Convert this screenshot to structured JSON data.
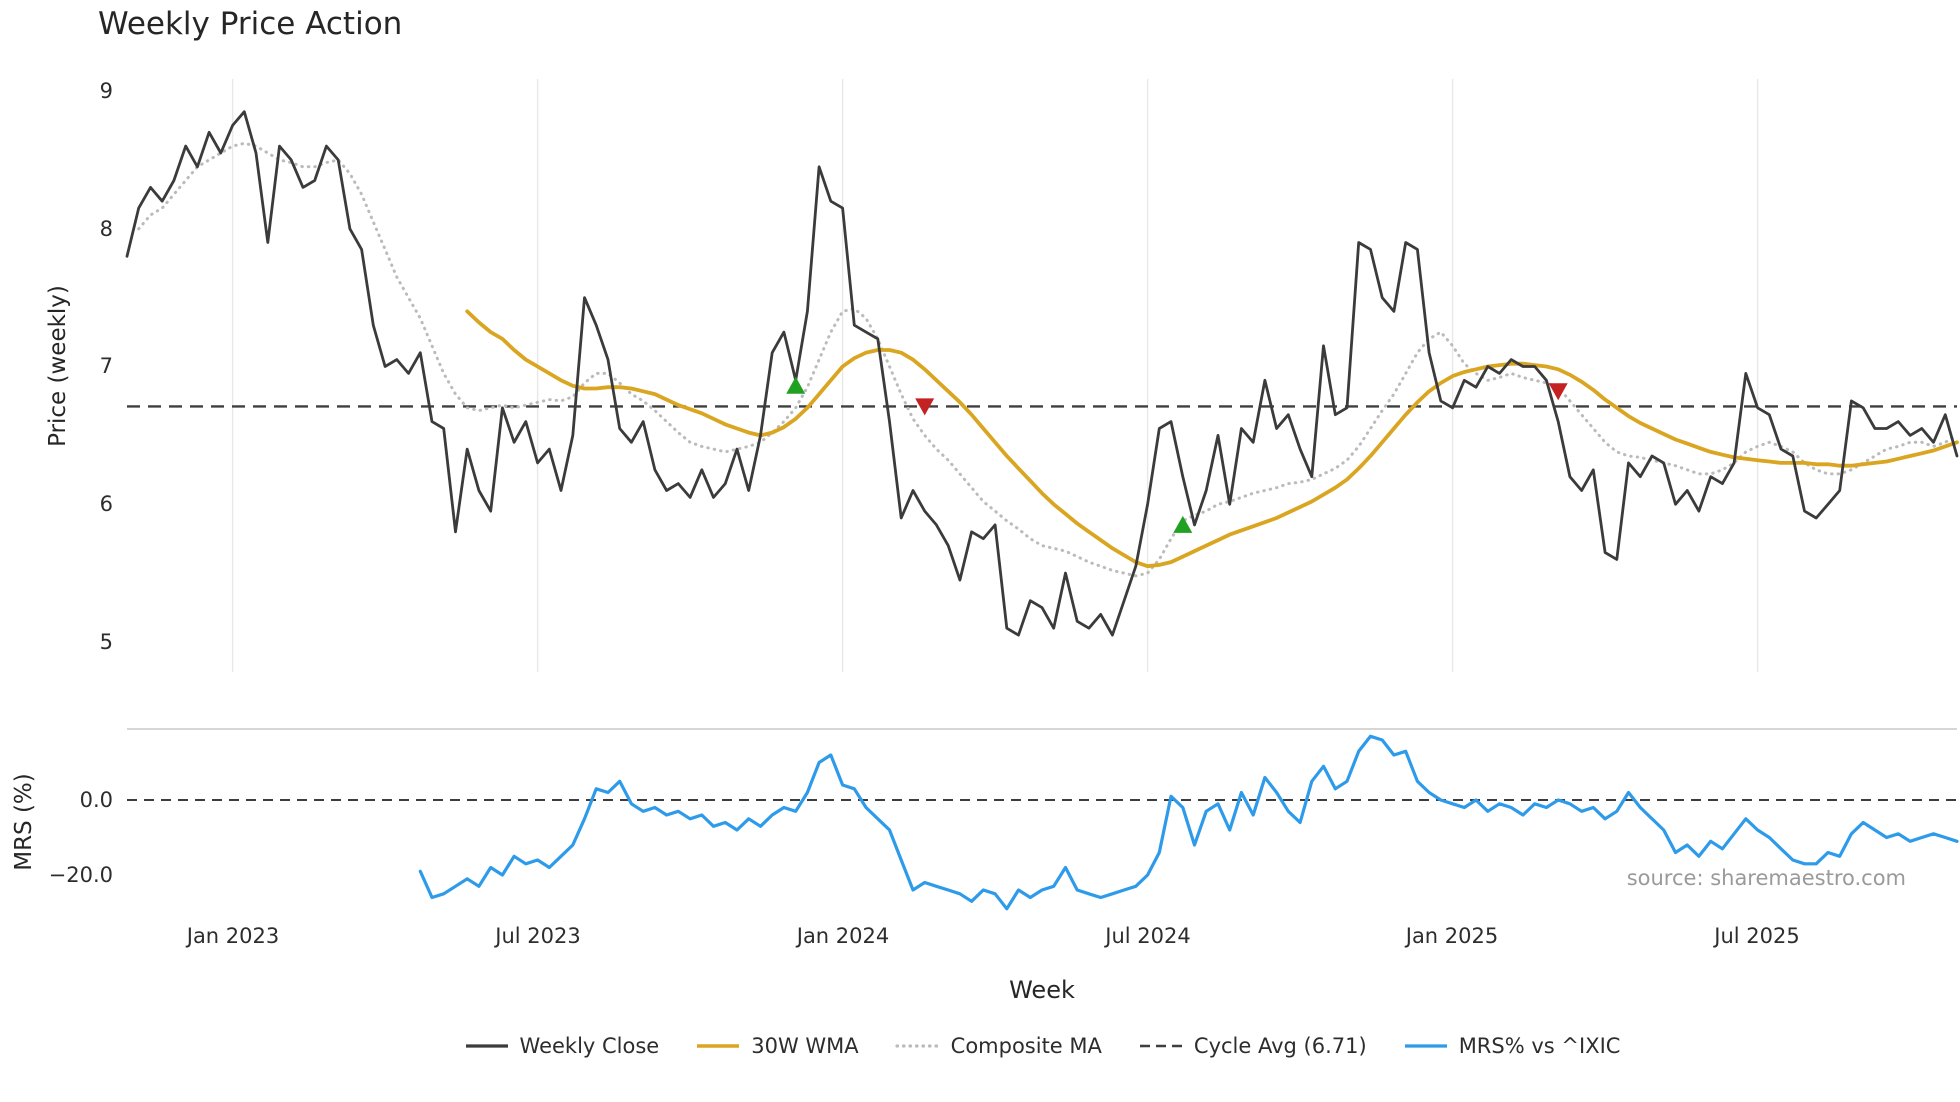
{
  "legend": {
    "items": [
      {
        "label": "Weekly Close",
        "color": "#3b3b3b"
      },
      {
        "label": "30W WMA",
        "color": "#DAA520"
      },
      {
        "label": "Composite MA",
        "color": "#bbbbbb"
      },
      {
        "label": "Cycle Avg (6.71)",
        "color": "#3f3f3f"
      },
      {
        "label": "MRS% vs ^IXIC",
        "color": "#2e9bea"
      }
    ]
  },
  "chart_data": {
    "type": "line",
    "title": "Weekly Price Action",
    "xlabel": "Week",
    "source": "source: sharemaestro.com",
    "signal_colors": {
      "buy": "#21a121",
      "sell": "#c42222"
    },
    "x_axis": {
      "unit": "week_index",
      "domain": [
        0,
        156
      ],
      "tick_weeks": [
        9,
        35,
        61,
        87,
        113,
        139
      ],
      "tick_labels": [
        "Jan 2023",
        "Jul 2023",
        "Jan 2024",
        "Jul 2024",
        "Jan 2025",
        "Jul 2025"
      ]
    },
    "panels": [
      {
        "name": "price",
        "ylabel": "Price (weekly)",
        "ylim": [
          4.8,
          9.2
        ],
        "yticks": [
          9,
          8,
          7,
          6,
          5
        ],
        "ytick_labels": [
          "9",
          "8",
          "7",
          "6",
          "5"
        ],
        "cycle_avg": 6.71,
        "grid": "vertical",
        "series": [
          {
            "name": "Weekly Close",
            "color": "#3b3b3b",
            "style": "solid",
            "x_start": 0,
            "values": [
              7.8,
              8.15,
              8.3,
              8.2,
              8.35,
              8.6,
              8.45,
              8.7,
              8.55,
              8.75,
              8.85,
              8.55,
              7.9,
              8.6,
              8.5,
              8.3,
              8.35,
              8.6,
              8.5,
              8.0,
              7.85,
              7.3,
              7.0,
              7.05,
              6.95,
              7.1,
              6.6,
              6.55,
              5.8,
              6.4,
              6.1,
              5.95,
              6.7,
              6.45,
              6.6,
              6.3,
              6.4,
              6.1,
              6.5,
              7.5,
              7.3,
              7.05,
              6.55,
              6.45,
              6.6,
              6.25,
              6.1,
              6.15,
              6.05,
              6.25,
              6.05,
              6.15,
              6.4,
              6.1,
              6.5,
              7.1,
              7.25,
              6.9,
              7.4,
              8.45,
              8.2,
              8.15,
              7.3,
              7.25,
              7.2,
              6.6,
              5.9,
              6.1,
              5.95,
              5.85,
              5.7,
              5.45,
              5.8,
              5.75,
              5.85,
              5.1,
              5.05,
              5.3,
              5.25,
              5.1,
              5.5,
              5.15,
              5.1,
              5.2,
              5.05,
              5.3,
              5.55,
              6.0,
              6.55,
              6.6,
              6.2,
              5.85,
              6.1,
              6.5,
              6.0,
              6.55,
              6.45,
              6.9,
              6.55,
              6.65,
              6.4,
              6.2,
              7.15,
              6.65,
              6.7,
              7.9,
              7.85,
              7.5,
              7.4,
              7.9,
              7.85,
              7.1,
              6.75,
              6.7,
              6.9,
              6.85,
              7.0,
              6.95,
              7.05,
              7.0,
              7.0,
              6.9,
              6.6,
              6.2,
              6.1,
              6.25,
              5.65,
              5.6,
              6.3,
              6.2,
              6.35,
              6.3,
              6.0,
              6.1,
              5.95,
              6.2,
              6.15,
              6.3,
              6.95,
              6.7,
              6.65,
              6.4,
              6.35,
              5.95,
              5.9,
              6.0,
              6.1,
              6.75,
              6.7,
              6.55,
              6.55,
              6.6,
              6.5,
              6.55,
              6.45,
              6.65,
              6.35
            ]
          },
          {
            "name": "30W WMA",
            "color": "#DAA520",
            "style": "solid",
            "x_start": 29,
            "values": [
              7.4,
              7.32,
              7.25,
              7.2,
              7.12,
              7.05,
              7.0,
              6.95,
              6.9,
              6.86,
              6.84,
              6.84,
              6.85,
              6.85,
              6.84,
              6.82,
              6.8,
              6.76,
              6.72,
              6.69,
              6.66,
              6.62,
              6.58,
              6.55,
              6.52,
              6.5,
              6.52,
              6.56,
              6.62,
              6.7,
              6.8,
              6.9,
              7.0,
              7.06,
              7.1,
              7.12,
              7.12,
              7.1,
              7.05,
              6.98,
              6.9,
              6.82,
              6.74,
              6.65,
              6.55,
              6.45,
              6.35,
              6.26,
              6.17,
              6.08,
              6.0,
              5.93,
              5.86,
              5.8,
              5.74,
              5.68,
              5.63,
              5.58,
              5.55,
              5.56,
              5.58,
              5.62,
              5.66,
              5.7,
              5.74,
              5.78,
              5.81,
              5.84,
              5.87,
              5.9,
              5.94,
              5.98,
              6.02,
              6.07,
              6.12,
              6.18,
              6.26,
              6.35,
              6.45,
              6.55,
              6.65,
              6.74,
              6.82,
              6.88,
              6.93,
              6.96,
              6.98,
              7.0,
              7.01,
              7.02,
              7.02,
              7.01,
              7.0,
              6.98,
              6.94,
              6.89,
              6.83,
              6.76,
              6.7,
              6.64,
              6.59,
              6.55,
              6.51,
              6.47,
              6.44,
              6.41,
              6.38,
              6.36,
              6.34,
              6.33,
              6.32,
              6.31,
              6.3,
              6.3,
              6.3,
              6.29,
              6.29,
              6.28,
              6.28,
              6.29,
              6.3,
              6.31,
              6.33,
              6.35,
              6.37,
              6.39,
              6.42,
              6.45
            ]
          },
          {
            "name": "Composite MA",
            "color": "#bbbbbb",
            "style": "dotted",
            "x_start": 1,
            "values": [
              8.0,
              8.1,
              8.15,
              8.25,
              8.35,
              8.45,
              8.5,
              8.55,
              8.6,
              8.62,
              8.6,
              8.55,
              8.5,
              8.48,
              8.45,
              8.45,
              8.48,
              8.5,
              8.4,
              8.25,
              8.05,
              7.85,
              7.65,
              7.5,
              7.35,
              7.15,
              6.95,
              6.8,
              6.7,
              6.68,
              6.7,
              6.72,
              6.7,
              6.72,
              6.74,
              6.76,
              6.75,
              6.78,
              6.88,
              6.95,
              6.95,
              6.88,
              6.8,
              6.75,
              6.68,
              6.6,
              6.52,
              6.45,
              6.42,
              6.4,
              6.38,
              6.4,
              6.42,
              6.45,
              6.52,
              6.6,
              6.7,
              6.85,
              7.05,
              7.25,
              7.4,
              7.42,
              7.35,
              7.2,
              7.0,
              6.8,
              6.62,
              6.5,
              6.4,
              6.32,
              6.22,
              6.12,
              6.02,
              5.95,
              5.88,
              5.82,
              5.75,
              5.7,
              5.68,
              5.66,
              5.62,
              5.58,
              5.55,
              5.52,
              5.5,
              5.48,
              5.5,
              5.6,
              5.75,
              5.88,
              5.92,
              5.95,
              6.0,
              6.02,
              6.05,
              6.08,
              6.1,
              6.12,
              6.15,
              6.16,
              6.18,
              6.22,
              6.26,
              6.32,
              6.42,
              6.55,
              6.68,
              6.8,
              6.95,
              7.1,
              7.2,
              7.25,
              7.15,
              7.02,
              6.95,
              6.9,
              6.92,
              6.95,
              6.92,
              6.9,
              6.88,
              6.85,
              6.75,
              6.65,
              6.55,
              6.45,
              6.38,
              6.35,
              6.34,
              6.32,
              6.3,
              6.28,
              6.25,
              6.22,
              6.22,
              6.25,
              6.3,
              6.38,
              6.42,
              6.45,
              6.42,
              6.38,
              6.3,
              6.25,
              6.22,
              6.22,
              6.25,
              6.3,
              6.35,
              6.4,
              6.42,
              6.45,
              6.45,
              6.42,
              6.45,
              6.5
            ]
          }
        ],
        "signals": [
          {
            "type": "buy",
            "week": 57,
            "price": 6.86
          },
          {
            "type": "sell",
            "week": 68,
            "price": 6.71
          },
          {
            "type": "buy",
            "week": 90,
            "price": 5.85
          },
          {
            "type": "sell",
            "week": 122,
            "price": 6.82
          }
        ]
      },
      {
        "name": "mrs",
        "ylabel": "MRS (%)",
        "ylim": [
          -32,
          20
        ],
        "yticks": [
          0,
          -20
        ],
        "ytick_labels": [
          "0.0",
          "−20.0"
        ],
        "zero_line": 0,
        "series": [
          {
            "name": "MRS% vs ^IXIC",
            "color": "#2e9bea",
            "style": "solid",
            "x_start": 25,
            "values": [
              -19,
              -26,
              -25,
              -23,
              -21,
              -23,
              -18,
              -20,
              -15,
              -17,
              -16,
              -18,
              -15,
              -12,
              -5,
              3,
              2,
              5,
              -1,
              -3,
              -2,
              -4,
              -3,
              -5,
              -4,
              -7,
              -6,
              -8,
              -5,
              -7,
              -4,
              -2,
              -3,
              2,
              10,
              12,
              4,
              3,
              -2,
              -5,
              -8,
              -16,
              -24,
              -22,
              -23,
              -24,
              -25,
              -27,
              -24,
              -25,
              -29,
              -24,
              -26,
              -24,
              -23,
              -18,
              -24,
              -25,
              -26,
              -25,
              -24,
              -23,
              -20,
              -14,
              1,
              -2,
              -12,
              -3,
              -1,
              -8,
              2,
              -4,
              6,
              2,
              -3,
              -6,
              5,
              9,
              3,
              5,
              13,
              17,
              16,
              12,
              13,
              5,
              2,
              0,
              -1,
              -2,
              0,
              -3,
              -1,
              -2,
              -4,
              -1,
              -2,
              0,
              -1,
              -3,
              -2,
              -5,
              -3,
              2,
              -2,
              -5,
              -8,
              -14,
              -12,
              -15,
              -11,
              -13,
              -9,
              -5,
              -8,
              -10,
              -13,
              -16,
              -17,
              -17,
              -14,
              -15,
              -9,
              -6,
              -8,
              -10,
              -9,
              -11,
              -10,
              -9,
              -10,
              -11
            ]
          }
        ]
      }
    ]
  }
}
